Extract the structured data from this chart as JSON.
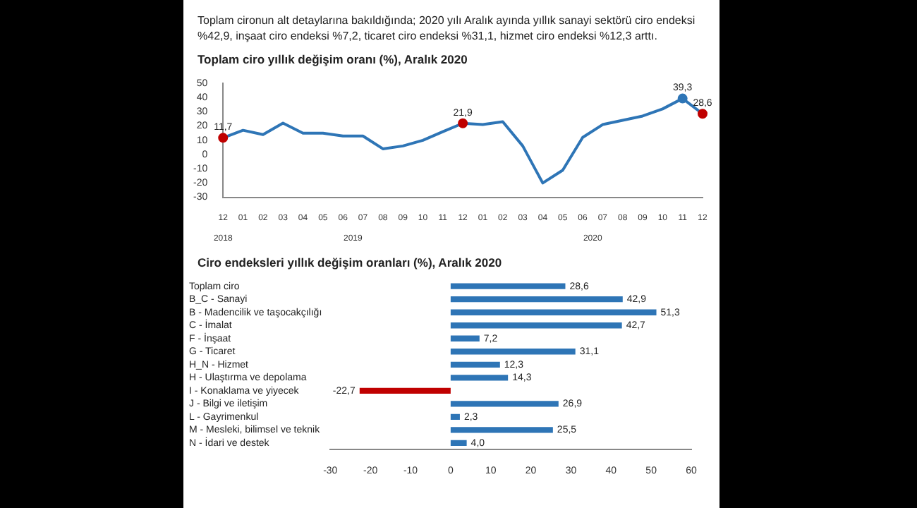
{
  "chart_data": [
    {
      "type": "line",
      "subtitle": "Toplam cironun alt detaylarına bakıldığında; 2020 yılı Aralık ayında yıllık sanayi sektörü ciro endeksi %42,9, inşaat ciro endeksi %7,2, ticaret ciro endeksi %31,1, hizmet ciro endeksi %12,3 arttı.",
      "title": "Toplam ciro yıllık değişim oranı (%), Aralık 2020",
      "categories": [
        "12",
        "01",
        "02",
        "03",
        "04",
        "05",
        "06",
        "07",
        "08",
        "09",
        "10",
        "11",
        "12",
        "01",
        "02",
        "03",
        "04",
        "05",
        "06",
        "07",
        "08",
        "09",
        "10",
        "11",
        "12"
      ],
      "series": [
        {
          "color": "#2e75b6",
          "values": [
            11.7,
            17,
            14,
            22,
            15,
            15,
            13,
            13,
            4,
            6,
            10,
            16,
            21.9,
            21,
            23,
            6,
            -20,
            -11,
            12,
            21,
            24,
            27,
            32,
            39.3,
            28.6
          ],
          "colors": [
            "#c00000",
            "#2e75b6",
            "#2e75b6",
            "#2e75b6",
            "#2e75b6",
            "#2e75b6",
            "#2e75b6",
            "#2e75b6",
            "#2e75b6",
            "#2e75b6",
            "#2e75b6",
            "#2e75b6",
            "#c00000",
            "#2e75b6",
            "#2e75b6",
            "#2e75b6",
            "#2e75b6",
            "#2e75b6",
            "#2e75b6",
            "#2e75b6",
            "#2e75b6",
            "#2e75b6",
            "#2e75b6",
            "#2e75b6",
            "#c00000"
          ],
          "value_labels": [
            "11,7",
            null,
            null,
            null,
            null,
            null,
            null,
            null,
            null,
            null,
            null,
            null,
            "21,9",
            null,
            null,
            null,
            null,
            null,
            null,
            null,
            null,
            null,
            null,
            "39,3",
            "28,6"
          ]
        }
      ],
      "annotations": [
        "2018",
        "2019",
        "2020"
      ],
      "ylim": [
        -30,
        50
      ],
      "yticks": [
        -30,
        -20,
        -10,
        0,
        10,
        20,
        30,
        40,
        50
      ],
      "grid": false,
      "legend": false,
      "line_style": "solid"
    },
    {
      "type": "bar",
      "orientation": "horizontal",
      "title": "Ciro endeksleri yıllık değişim oranları (%), Aralık 2020",
      "categories": [
        "Toplam ciro",
        "B_C - Sanayi",
        "B - Madencilik ve taşocakçılığı",
        "C - İmalat",
        "F - İnşaat",
        "G - Ticaret",
        "H_N - Hizmet",
        "H - Ulaştırma ve depolama",
        "I - Konaklama ve yiyecek",
        "J - Bilgi ve iletişim",
        "L - Gayrimenkul",
        "M - Mesleki, bilimsel ve teknik",
        "N - İdari ve destek"
      ],
      "values": [
        28.6,
        42.9,
        51.3,
        42.7,
        7.2,
        31.1,
        12.3,
        14.3,
        -22.7,
        26.9,
        2.3,
        25.5,
        4.0
      ],
      "colors": [
        "#2e75b6",
        "#2e75b6",
        "#2e75b6",
        "#2e75b6",
        "#2e75b6",
        "#2e75b6",
        "#2e75b6",
        "#2e75b6",
        "#c00000",
        "#2e75b6",
        "#2e75b6",
        "#2e75b6",
        "#2e75b6"
      ],
      "value_labels": [
        "28,6",
        "42,9",
        "51,3",
        "42,7",
        "7,2",
        "31,1",
        "12,3",
        "14,3",
        "-22,7",
        "26,9",
        "2,3",
        "25,5",
        "4,0"
      ],
      "xlim": [
        -30,
        60
      ],
      "xticks": [
        -30,
        -20,
        -10,
        0,
        10,
        20,
        30,
        40,
        50,
        60
      ],
      "grid": false,
      "legend": false
    }
  ]
}
